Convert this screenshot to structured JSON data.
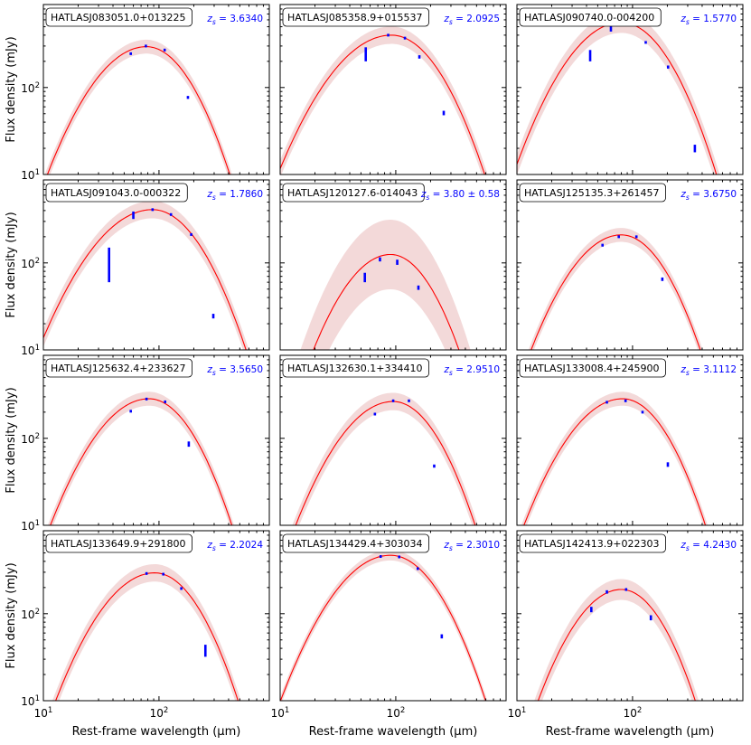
{
  "chart_data": {
    "type": "line",
    "layout": "4x3 grid of spectral energy distribution panels",
    "xlabel": "Rest-frame wavelength (μm)",
    "ylabel": "Flux density (mJy)",
    "xscale": "log",
    "yscale": "log",
    "xlim": [
      10,
      900
    ],
    "ylim": [
      10,
      900
    ],
    "xticks": [
      {
        "v": 10,
        "b": "10",
        "e": "1"
      },
      {
        "v": 100,
        "b": "10",
        "e": "2"
      }
    ],
    "yticks": [
      {
        "v": 10,
        "b": "10",
        "e": "1"
      },
      {
        "v": 100,
        "b": "10",
        "e": "2"
      }
    ],
    "colors": {
      "model": "#ff0000",
      "band": "#e8b4b4",
      "data": "#0000ff"
    },
    "panels": [
      {
        "name": "HATLASJ083051.0+013225",
        "z": "3.6340",
        "peak_x": 78,
        "peak_y": 295,
        "sigma_left": 0.5,
        "sigma_right": 0.42,
        "band": 0.08,
        "points": [
          {
            "x": 57,
            "y": 245,
            "lo": 240,
            "hi": 250
          },
          {
            "x": 77,
            "y": 300,
            "lo": 292,
            "hi": 308
          },
          {
            "x": 112,
            "y": 270,
            "lo": 262,
            "hi": 278
          },
          {
            "x": 178,
            "y": 77,
            "lo": 74,
            "hi": 80
          }
        ]
      },
      {
        "name": "HATLASJ085358.9+015537",
        "z": "2.0925",
        "peak_x": 92,
        "peak_y": 400,
        "sigma_left": 0.55,
        "sigma_right": 0.45,
        "band": 0.1,
        "points": [
          {
            "x": 55,
            "y": 240,
            "lo": 200,
            "hi": 290
          },
          {
            "x": 86,
            "y": 400,
            "lo": 390,
            "hi": 410
          },
          {
            "x": 120,
            "y": 370,
            "lo": 362,
            "hi": 378
          },
          {
            "x": 160,
            "y": 225,
            "lo": 215,
            "hi": 235
          },
          {
            "x": 260,
            "y": 51,
            "lo": 48,
            "hi": 54
          }
        ]
      },
      {
        "name": "HATLASJ090740.0-004200",
        "z": "1.5770",
        "peak_x": 80,
        "peak_y": 560,
        "sigma_left": 0.5,
        "sigma_right": 0.44,
        "band": 0.12,
        "points": [
          {
            "x": 43,
            "y": 230,
            "lo": 200,
            "hi": 270
          },
          {
            "x": 65,
            "y": 480,
            "lo": 440,
            "hi": 520
          },
          {
            "x": 130,
            "y": 330,
            "lo": 322,
            "hi": 338
          },
          {
            "x": 203,
            "y": 172,
            "lo": 165,
            "hi": 179
          },
          {
            "x": 346,
            "y": 20,
            "lo": 18,
            "hi": 22
          }
        ]
      },
      {
        "name": "HATLASJ091043.0-000322",
        "z": "1.7860",
        "peak_x": 88,
        "peak_y": 410,
        "sigma_left": 0.55,
        "sigma_right": 0.45,
        "band": 0.1,
        "points": [
          {
            "x": 37,
            "y": 100,
            "lo": 60,
            "hi": 150
          },
          {
            "x": 60,
            "y": 350,
            "lo": 320,
            "hi": 390
          },
          {
            "x": 88,
            "y": 410,
            "lo": 402,
            "hi": 418
          },
          {
            "x": 127,
            "y": 360,
            "lo": 354,
            "hi": 366
          },
          {
            "x": 190,
            "y": 212,
            "lo": 205,
            "hi": 219
          },
          {
            "x": 295,
            "y": 24.5,
            "lo": 23,
            "hi": 26
          }
        ]
      },
      {
        "name": "HATLASJ120127.6-014043",
        "z": "3.80 ± 0.58",
        "peak_x": 90,
        "peak_y": 125,
        "sigma_left": 0.45,
        "sigma_right": 0.4,
        "band": 0.4,
        "points": [
          {
            "x": 54,
            "y": 68,
            "lo": 60,
            "hi": 77
          },
          {
            "x": 73,
            "y": 110,
            "lo": 104,
            "hi": 116
          },
          {
            "x": 103,
            "y": 102,
            "lo": 95,
            "hi": 109
          },
          {
            "x": 157,
            "y": 52,
            "lo": 49,
            "hi": 55
          }
        ]
      },
      {
        "name": "HATLASJ125135.3+261457",
        "z": "3.6750",
        "peak_x": 80,
        "peak_y": 210,
        "sigma_left": 0.48,
        "sigma_right": 0.42,
        "band": 0.08,
        "points": [
          {
            "x": 55,
            "y": 160,
            "lo": 154,
            "hi": 166
          },
          {
            "x": 76,
            "y": 200,
            "lo": 193,
            "hi": 207
          },
          {
            "x": 108,
            "y": 200,
            "lo": 193,
            "hi": 207
          },
          {
            "x": 181,
            "y": 65,
            "lo": 62,
            "hi": 68
          }
        ]
      },
      {
        "name": "HATLASJ125632.4+233627",
        "z": "3.5650",
        "peak_x": 82,
        "peak_y": 285,
        "sigma_left": 0.5,
        "sigma_right": 0.42,
        "band": 0.08,
        "points": [
          {
            "x": 57,
            "y": 205,
            "lo": 199,
            "hi": 211
          },
          {
            "x": 78,
            "y": 283,
            "lo": 275,
            "hi": 291
          },
          {
            "x": 113,
            "y": 263,
            "lo": 256,
            "hi": 270
          },
          {
            "x": 181,
            "y": 86,
            "lo": 80,
            "hi": 92
          }
        ]
      },
      {
        "name": "HATLASJ132630.1+334410",
        "z": "2.9510",
        "peak_x": 95,
        "peak_y": 265,
        "sigma_left": 0.5,
        "sigma_right": 0.42,
        "band": 0.1,
        "points": [
          {
            "x": 66,
            "y": 190,
            "lo": 184,
            "hi": 196
          },
          {
            "x": 95,
            "y": 270,
            "lo": 264,
            "hi": 276
          },
          {
            "x": 130,
            "y": 270,
            "lo": 264,
            "hi": 276
          },
          {
            "x": 215,
            "y": 48,
            "lo": 46,
            "hi": 50
          }
        ]
      },
      {
        "name": "HATLASJ133008.4+245900",
        "z": "3.1112",
        "peak_x": 82,
        "peak_y": 285,
        "sigma_left": 0.5,
        "sigma_right": 0.42,
        "band": 0.08,
        "points": [
          {
            "x": 60,
            "y": 260,
            "lo": 253,
            "hi": 267
          },
          {
            "x": 87,
            "y": 270,
            "lo": 263,
            "hi": 277
          },
          {
            "x": 122,
            "y": 200,
            "lo": 193,
            "hi": 207
          },
          {
            "x": 202,
            "y": 50,
            "lo": 47,
            "hi": 53
          }
        ]
      },
      {
        "name": "HATLASJ133649.9+291800",
        "z": "2.2024",
        "peak_x": 92,
        "peak_y": 295,
        "sigma_left": 0.5,
        "sigma_right": 0.42,
        "band": 0.1,
        "points": [
          {
            "x": 78,
            "y": 290,
            "lo": 284,
            "hi": 296
          },
          {
            "x": 109,
            "y": 285,
            "lo": 279,
            "hi": 291
          },
          {
            "x": 156,
            "y": 195,
            "lo": 188,
            "hi": 202
          },
          {
            "x": 252,
            "y": 37,
            "lo": 32,
            "hi": 44
          }
        ]
      },
      {
        "name": "HATLASJ134429.4+303034",
        "z": "2.3010",
        "peak_x": 90,
        "peak_y": 470,
        "sigma_left": 0.52,
        "sigma_right": 0.45,
        "band": 0.06,
        "points": [
          {
            "x": 74,
            "y": 455,
            "lo": 448,
            "hi": 462
          },
          {
            "x": 107,
            "y": 450,
            "lo": 443,
            "hi": 457
          },
          {
            "x": 155,
            "y": 330,
            "lo": 323,
            "hi": 337
          },
          {
            "x": 250,
            "y": 55,
            "lo": 52,
            "hi": 58
          }
        ]
      },
      {
        "name": "HATLASJ142413.9+022303",
        "z": "4.2430",
        "peak_x": 80,
        "peak_y": 190,
        "sigma_left": 0.45,
        "sigma_right": 0.4,
        "band": 0.12,
        "points": [
          {
            "x": 44,
            "y": 112,
            "lo": 104,
            "hi": 120
          },
          {
            "x": 60,
            "y": 178,
            "lo": 170,
            "hi": 186
          },
          {
            "x": 88,
            "y": 190,
            "lo": 183,
            "hi": 197
          },
          {
            "x": 144,
            "y": 90,
            "lo": 84,
            "hi": 96
          }
        ]
      }
    ]
  }
}
